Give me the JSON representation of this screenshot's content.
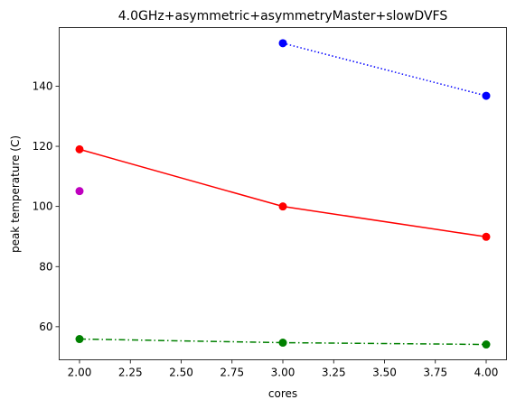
{
  "chart_data": {
    "type": "line",
    "title": "4.0GHz+asymmetric+asymmetryMaster+slowDVFS",
    "xlabel": "cores",
    "ylabel": "peak temperature (C)",
    "xlim": [
      1.9,
      4.1
    ],
    "ylim": [
      49.0,
      159.5
    ],
    "x_ticks": [
      2.0,
      2.25,
      2.5,
      2.75,
      3.0,
      3.25,
      3.5,
      3.75,
      4.0
    ],
    "x_tick_labels": [
      "2.00",
      "2.25",
      "2.50",
      "2.75",
      "3.00",
      "3.25",
      "3.50",
      "3.75",
      "4.00"
    ],
    "y_ticks": [
      60,
      80,
      100,
      120,
      140
    ],
    "y_tick_labels": [
      "60",
      "80",
      "100",
      "120",
      "140"
    ],
    "grid": false,
    "series": [
      {
        "name": "blue",
        "color": "#0000ff",
        "line_style": "dotted",
        "x": [
          3,
          4
        ],
        "values": [
          154.3,
          136.8
        ]
      },
      {
        "name": "red",
        "color": "#ff0000",
        "line_style": "solid",
        "x": [
          2,
          3,
          4
        ],
        "values": [
          119.0,
          100.0,
          89.9
        ]
      },
      {
        "name": "magenta",
        "color": "#bf00bf",
        "line_style": "none",
        "x": [
          2
        ],
        "values": [
          105.1
        ]
      },
      {
        "name": "green",
        "color": "#008000",
        "line_style": "dashdot",
        "x": [
          2,
          3,
          4
        ],
        "values": [
          55.9,
          54.7,
          54.1
        ]
      }
    ]
  }
}
